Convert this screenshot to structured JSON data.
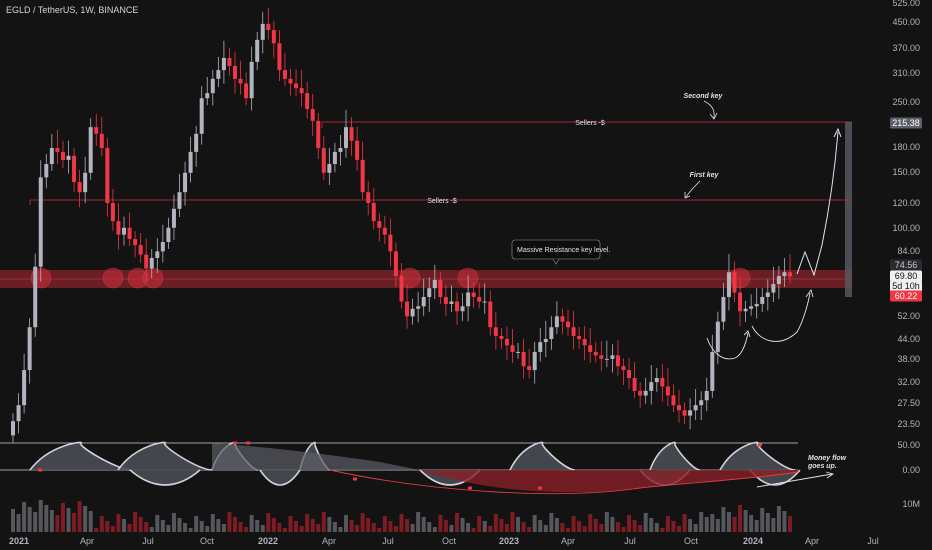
{
  "header": {
    "symbol": "EGLD / TetherUS, 1W, BINANCE"
  },
  "colors": {
    "background": "#131313",
    "up": "#b2b5be",
    "down": "#f23645",
    "zone": "#b22833",
    "line": "#c9303a",
    "gray_band": "#4a4d55"
  },
  "chart_data": {
    "type": "candlestick",
    "title": "EGLD / TetherUS, 1W, BINANCE",
    "scale": "log",
    "ylim": [
      20,
      525
    ],
    "y_ticks": [
      "525.00",
      "450.00",
      "370.00",
      "310.00",
      "250.00",
      "215.38",
      "180.00",
      "150.00",
      "120.00",
      "100.00",
      "84.00",
      "74.56",
      "69.80",
      "5d 10h",
      "60.22",
      "52.00",
      "44.00",
      "38.00",
      "32.00",
      "27.50",
      "23.50"
    ],
    "y_tick_values": [
      525,
      450,
      370,
      310,
      250,
      null,
      180,
      150,
      120,
      100,
      84,
      null,
      null,
      null,
      null,
      52,
      44,
      38,
      32,
      27.5,
      23.5
    ],
    "price_tags": [
      {
        "label": "215.38",
        "value": 215.38,
        "style": "gray"
      },
      {
        "label": "74.56",
        "value": 74.56,
        "style": "light"
      },
      {
        "label": "69.80",
        "value": 69.8,
        "style": "white"
      },
      {
        "label": "5d 10h",
        "value": 65.5,
        "style": "white"
      },
      {
        "label": "60.22",
        "value": 60.22,
        "style": "red"
      }
    ],
    "x_ticks": [
      "2021",
      "Apr",
      "Jul",
      "Oct",
      "2022",
      "Apr",
      "Jul",
      "Oct",
      "2023",
      "Apr",
      "Jul",
      "Oct",
      "2024",
      "Apr",
      "Jul"
    ],
    "x_tick_dates": [
      "2021-01",
      "2021-04",
      "2021-07",
      "2021-10",
      "2022-01",
      "2022-04",
      "2022-07",
      "2022-10",
      "2023-01",
      "2023-04",
      "2023-07",
      "2023-10",
      "2024-01",
      "2024-04",
      "2024-07"
    ],
    "weekly_closes": [
      24,
      27,
      35,
      48,
      75,
      145,
      160,
      180,
      175,
      165,
      170,
      140,
      130,
      150,
      210,
      200,
      180,
      120,
      105,
      95,
      100,
      92,
      88,
      82,
      74,
      80,
      84,
      90,
      100,
      115,
      130,
      150,
      175,
      200,
      260,
      270,
      300,
      320,
      350,
      330,
      300,
      290,
      260,
      340,
      400,
      450,
      430,
      390,
      320,
      300,
      290,
      280,
      270,
      240,
      220,
      180,
      150,
      160,
      175,
      180,
      210,
      190,
      165,
      130,
      120,
      105,
      100,
      95,
      84,
      70,
      58,
      52,
      55,
      56,
      60,
      64,
      68,
      60,
      57,
      58,
      54,
      56,
      62,
      60,
      58,
      58,
      48,
      45,
      44,
      42,
      40,
      40,
      36,
      35,
      40,
      43,
      44,
      48,
      52,
      50,
      48,
      45,
      44,
      42,
      40,
      39,
      38,
      38,
      39,
      36,
      35,
      33,
      30,
      29,
      30,
      32,
      33,
      31,
      29,
      27,
      26,
      25,
      26,
      27,
      28,
      30,
      40,
      50,
      60,
      72,
      62,
      54,
      55,
      56,
      57,
      60,
      62,
      66,
      70,
      72,
      69.8
    ],
    "horizontal_levels": [
      {
        "label": "Sellers -$",
        "value": 215.38
      },
      {
        "label": "Sellers -$",
        "value": 122
      }
    ],
    "resistance_zone": [
      62,
      74.5
    ],
    "annotations": [
      {
        "text": "Massive Resistance key level."
      },
      {
        "text": "Second key"
      },
      {
        "text": "First key"
      },
      {
        "text": "Money flow goes up."
      }
    ],
    "oscillator_ticks": [
      "50.00",
      "0.00"
    ],
    "volume_tick": "10M"
  }
}
